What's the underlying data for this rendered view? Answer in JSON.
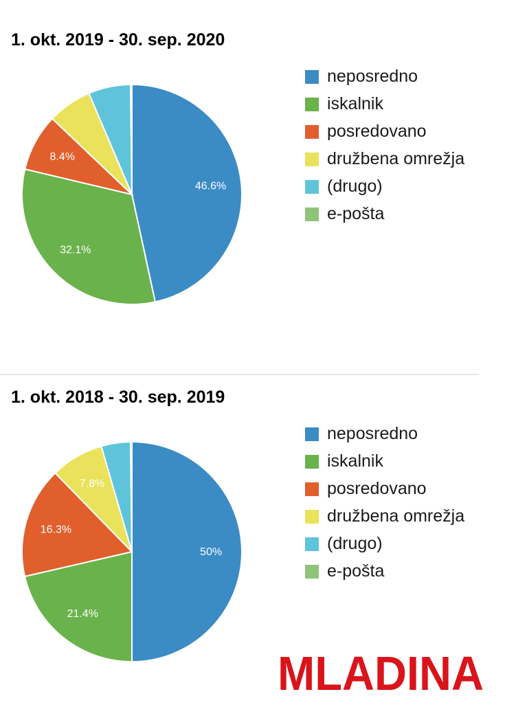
{
  "chart_data": [
    {
      "type": "pie",
      "title": "1. okt. 2019 - 30. sep. 2020",
      "categories": [
        "neposredno",
        "iskalnik",
        "posredovano",
        "družbena omrežja",
        "(drugo)",
        "e-pošta"
      ],
      "values": [
        46.6,
        32.1,
        8.4,
        6.5,
        6.2,
        0.2
      ],
      "data_labels": [
        "46.6%",
        "32.1%",
        "8.4%",
        "",
        "",
        ""
      ],
      "colors": [
        "#3b8bc4",
        "#6ab24b",
        "#e05f2d",
        "#e9e25a",
        "#5fc4db",
        "#8dc478"
      ],
      "legend_position": "right"
    },
    {
      "type": "pie",
      "title": "1. okt. 2018 - 30. sep. 2019",
      "categories": [
        "neposredno",
        "iskalnik",
        "posredovano",
        "družbena omrežja",
        "(drugo)",
        "e-pošta"
      ],
      "values": [
        50,
        21.4,
        16.3,
        7.8,
        4.3,
        0.2
      ],
      "data_labels": [
        "50%",
        "21.4%",
        "16.3%",
        "7.8%",
        "",
        ""
      ],
      "colors": [
        "#3b8bc4",
        "#6ab24b",
        "#e05f2d",
        "#e9e25a",
        "#5fc4db",
        "#8dc478"
      ],
      "legend_position": "right"
    }
  ],
  "logo": {
    "text": "MLADINA",
    "color": "#d9141b"
  }
}
